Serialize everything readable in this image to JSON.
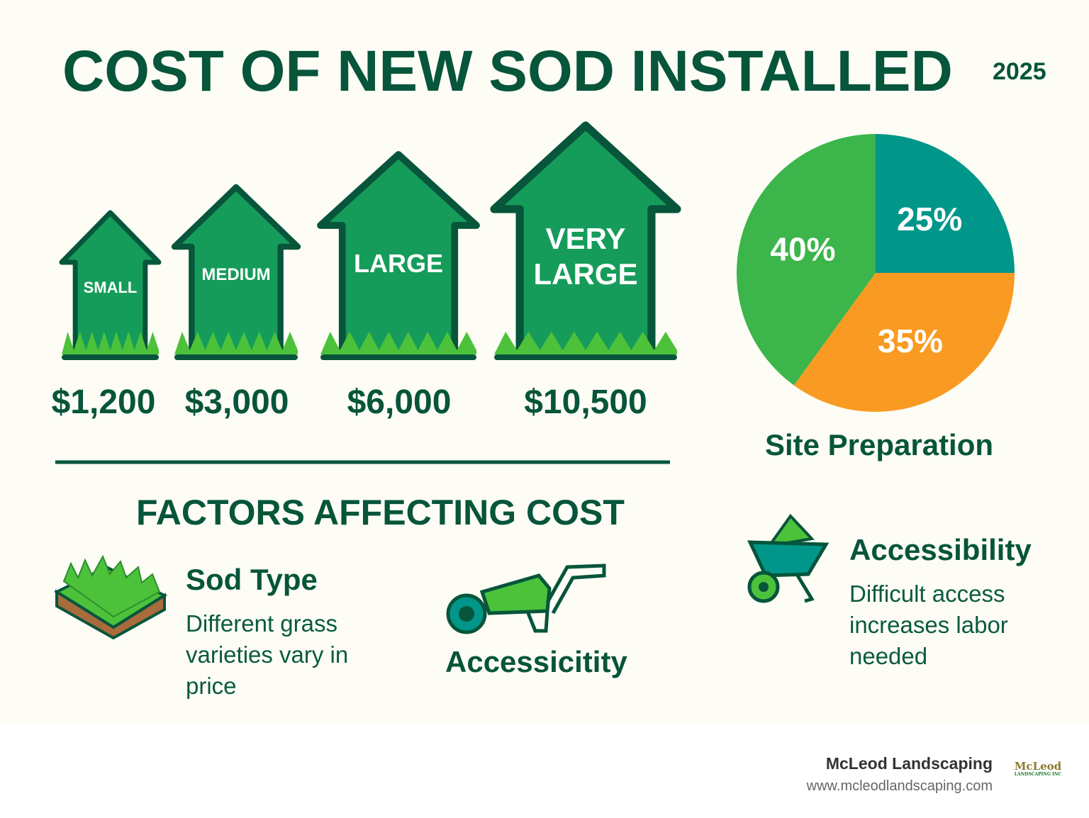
{
  "title": "COST OF NEW SOD INSTALLED",
  "year": "2025",
  "sizes": [
    {
      "label": "SMALL",
      "price": "$1,200"
    },
    {
      "label": "MEDIUM",
      "price": "$3,000"
    },
    {
      "label": "LARGE",
      "price": "$6,000"
    },
    {
      "label": "VERY LARGE",
      "price": "$10,500"
    }
  ],
  "pie": {
    "caption": "Site Preparation",
    "slices": [
      {
        "label": "25%",
        "value": 25,
        "color": "#00978a"
      },
      {
        "label": "35%",
        "value": 35,
        "color": "#f99b22"
      },
      {
        "label": "40%",
        "value": 40,
        "color": "#3cb54a"
      }
    ]
  },
  "factors": {
    "heading": "FACTORS AFFECTING COST",
    "items": [
      {
        "title": "Sod Type",
        "desc": "Different grass varieties vary in price",
        "icon": "sod-roll-icon"
      },
      {
        "title": "Accessicitity",
        "desc": "",
        "icon": "wheelbarrow-icon"
      },
      {
        "title": "Accessibility",
        "desc": "Difficult access increases labor needed",
        "icon": "wheelbarrow-icon"
      }
    ]
  },
  "footer": {
    "brand": "McLeod Landscaping",
    "url": "www.mcleodlandscaping.com",
    "logo_text": "McLeod",
    "logo_sub": "LANDSCAPING INC"
  },
  "colors": {
    "dark_green": "#07553b",
    "house_green": "#169c5a",
    "grass": "#4cc23a",
    "teal": "#00978a",
    "orange": "#f99b22"
  }
}
